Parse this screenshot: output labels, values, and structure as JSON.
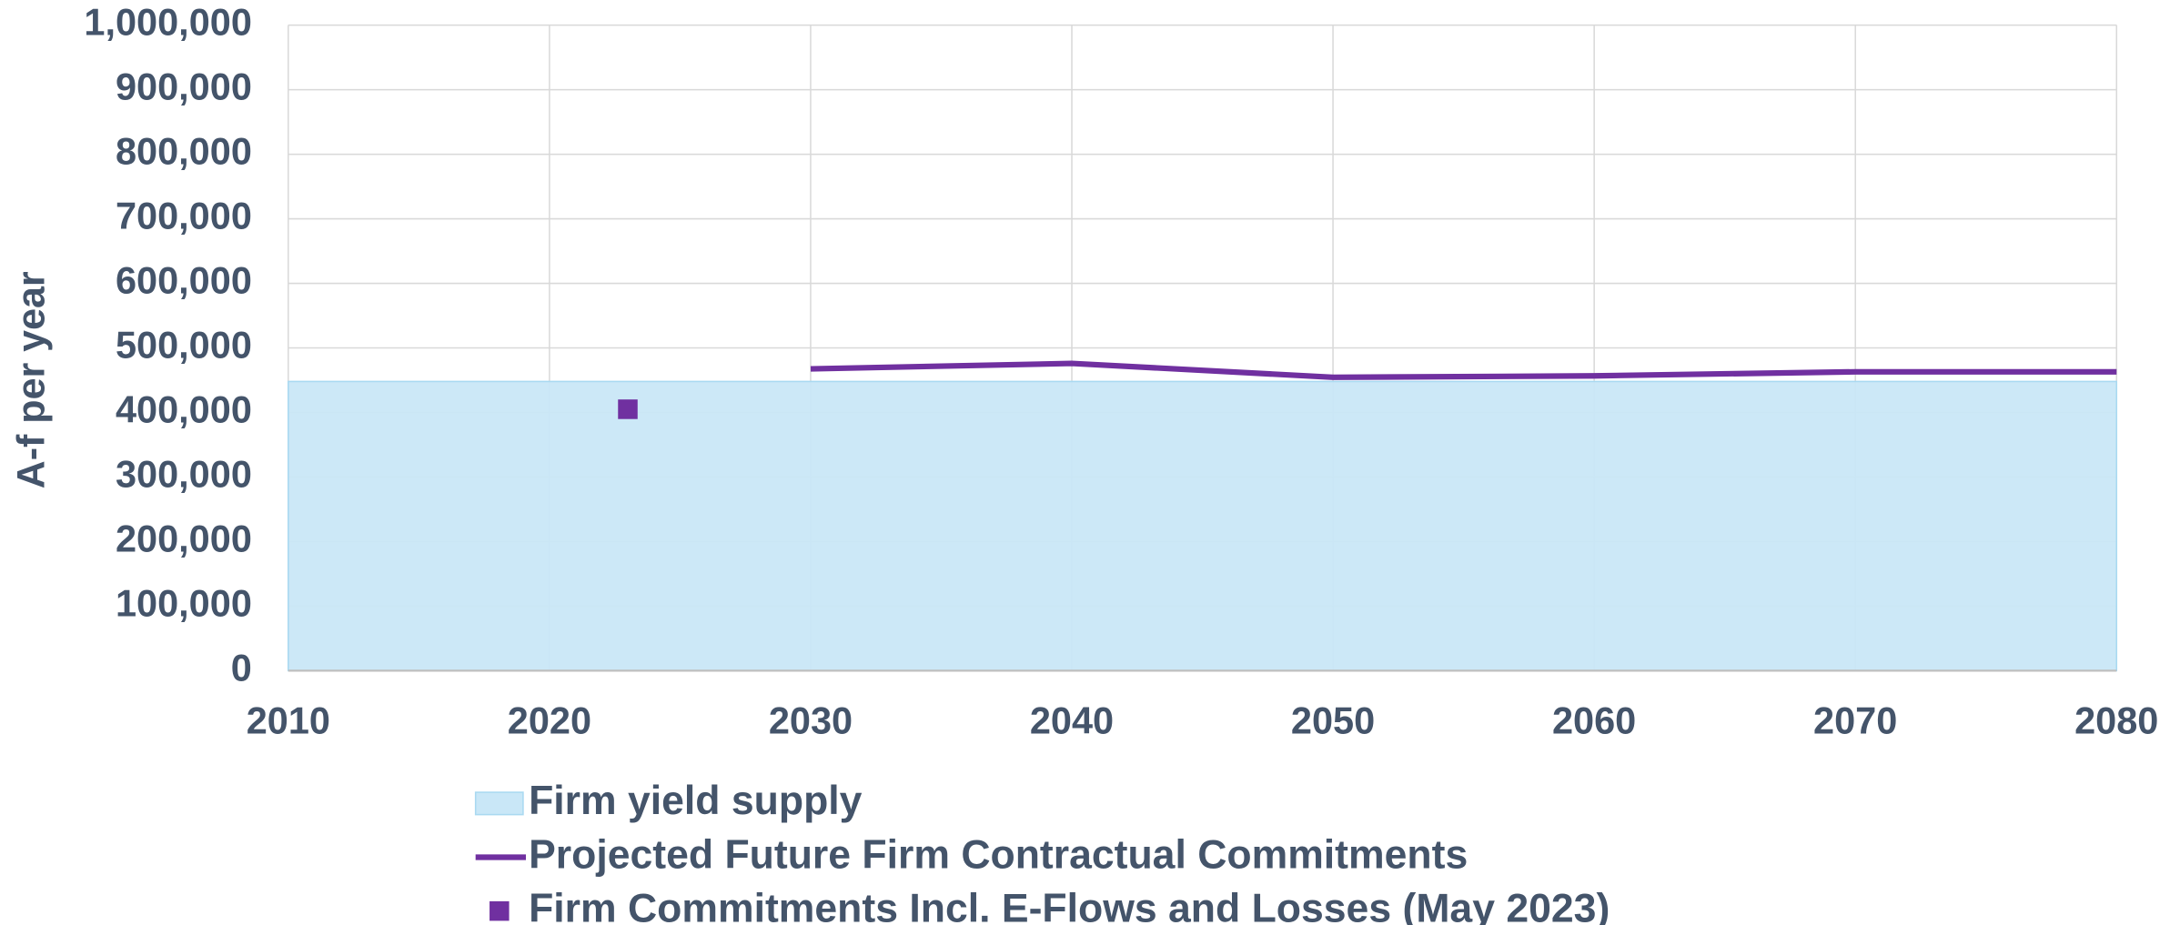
{
  "chart_data": {
    "type": "line",
    "ylabel": "A-f per year",
    "xlim": [
      2010,
      2080
    ],
    "xticks": [
      2010,
      2020,
      2030,
      2040,
      2050,
      2060,
      2070,
      2080
    ],
    "ylim": [
      0,
      1000000
    ],
    "yticks": [
      0,
      {
        "value": 100000,
        "label": "100,000"
      },
      {
        "value": 200000,
        "label": "200,000"
      },
      {
        "value": 300000,
        "label": "300,000"
      },
      {
        "value": 400000,
        "label": "400,000"
      },
      {
        "value": 500000,
        "label": "500,000"
      },
      {
        "value": 600000,
        "label": "600,000"
      },
      {
        "value": 700000,
        "label": "700,000"
      },
      {
        "value": 800000,
        "label": "800,000"
      },
      {
        "value": 900000,
        "label": "900,000"
      },
      {
        "value": 1000000,
        "label": "1,000,000"
      }
    ],
    "grid": true,
    "legend": "bottom",
    "series": [
      {
        "name": "Firm yield supply",
        "kind": "area",
        "color": "#c9e7f7",
        "x": [
          2010,
          2080
        ],
        "values": [
          448000,
          448000
        ]
      },
      {
        "name": "Projected Future Firm Contractual Commitments",
        "kind": "line",
        "color": "#7030a0",
        "x": [
          2030,
          2040,
          2050,
          2060,
          2070,
          2080
        ],
        "values": [
          467500,
          476000,
          454500,
          456700,
          463000,
          463000
        ]
      },
      {
        "name": "Firm Commitments Incl. E-Flows and Losses (May 2023)",
        "kind": "marker",
        "color": "#7030a0",
        "x": [
          2023
        ],
        "values": [
          405000
        ]
      }
    ]
  }
}
